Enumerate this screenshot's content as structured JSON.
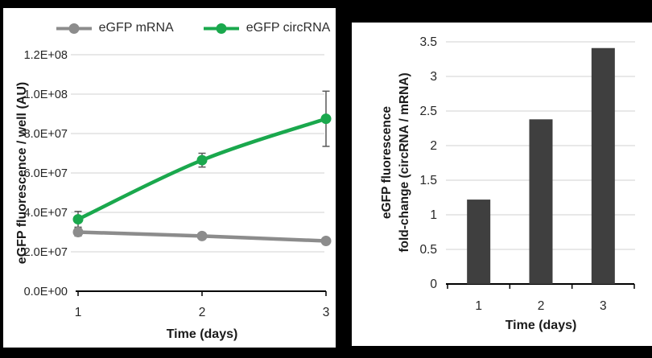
{
  "page_background": "#000000",
  "colors": {
    "panel_background": "#FFFFFF",
    "grid": "#D9D9D9",
    "axis": "#000000",
    "error_bar": "#595959",
    "tick_text": "#262626",
    "mrna_gray": "#8C8C8C",
    "circrna_green": "#1AA84D",
    "bar_dark_gray": "#3F3F3F"
  },
  "chart_data": [
    {
      "type": "line",
      "x": [
        1,
        2,
        3
      ],
      "xlabel": "Time (days)",
      "ylabel": "eGFP fluorescence / well (AU)",
      "ylim": [
        0,
        120000000
      ],
      "ytick_step": 20000000,
      "ytick_labels": [
        "0.0E+00",
        "2.0E+07",
        "4.0E+07",
        "6.0E+07",
        "8.0E+07",
        "1.0E+08",
        "1.2E+08"
      ],
      "xtick_labels": [
        "1",
        "2",
        "3"
      ],
      "grid": true,
      "legend_position": "top",
      "series": [
        {
          "name": "eGFP mRNA",
          "color": "#8C8C8C",
          "values": [
            30000000,
            28000000,
            25500000
          ],
          "errors": [
            2000000,
            1000000,
            1000000
          ]
        },
        {
          "name": "eGFP circRNA",
          "color": "#1AA84D",
          "values": [
            36500000,
            66500000,
            87500000
          ],
          "errors": [
            4000000,
            3500000,
            14000000
          ]
        }
      ]
    },
    {
      "type": "bar",
      "categories": [
        "1",
        "2",
        "3"
      ],
      "values": [
        1.22,
        2.38,
        3.41
      ],
      "xlabel": "Time (days)",
      "ylabel": "eGFP fluorescence fold-change (circRNA / mRNA)",
      "ylabel_line1": "eGFP fluorescence",
      "ylabel_line2": "fold-change (circRNA / mRNA)",
      "ylim": [
        0,
        3.5
      ],
      "ytick_step": 0.5,
      "ytick_labels": [
        "0",
        "0.5",
        "1",
        "1.5",
        "2",
        "2.5",
        "3",
        "3.5"
      ],
      "bar_color": "#3F3F3F",
      "grid": true,
      "legend_position": "none"
    }
  ]
}
